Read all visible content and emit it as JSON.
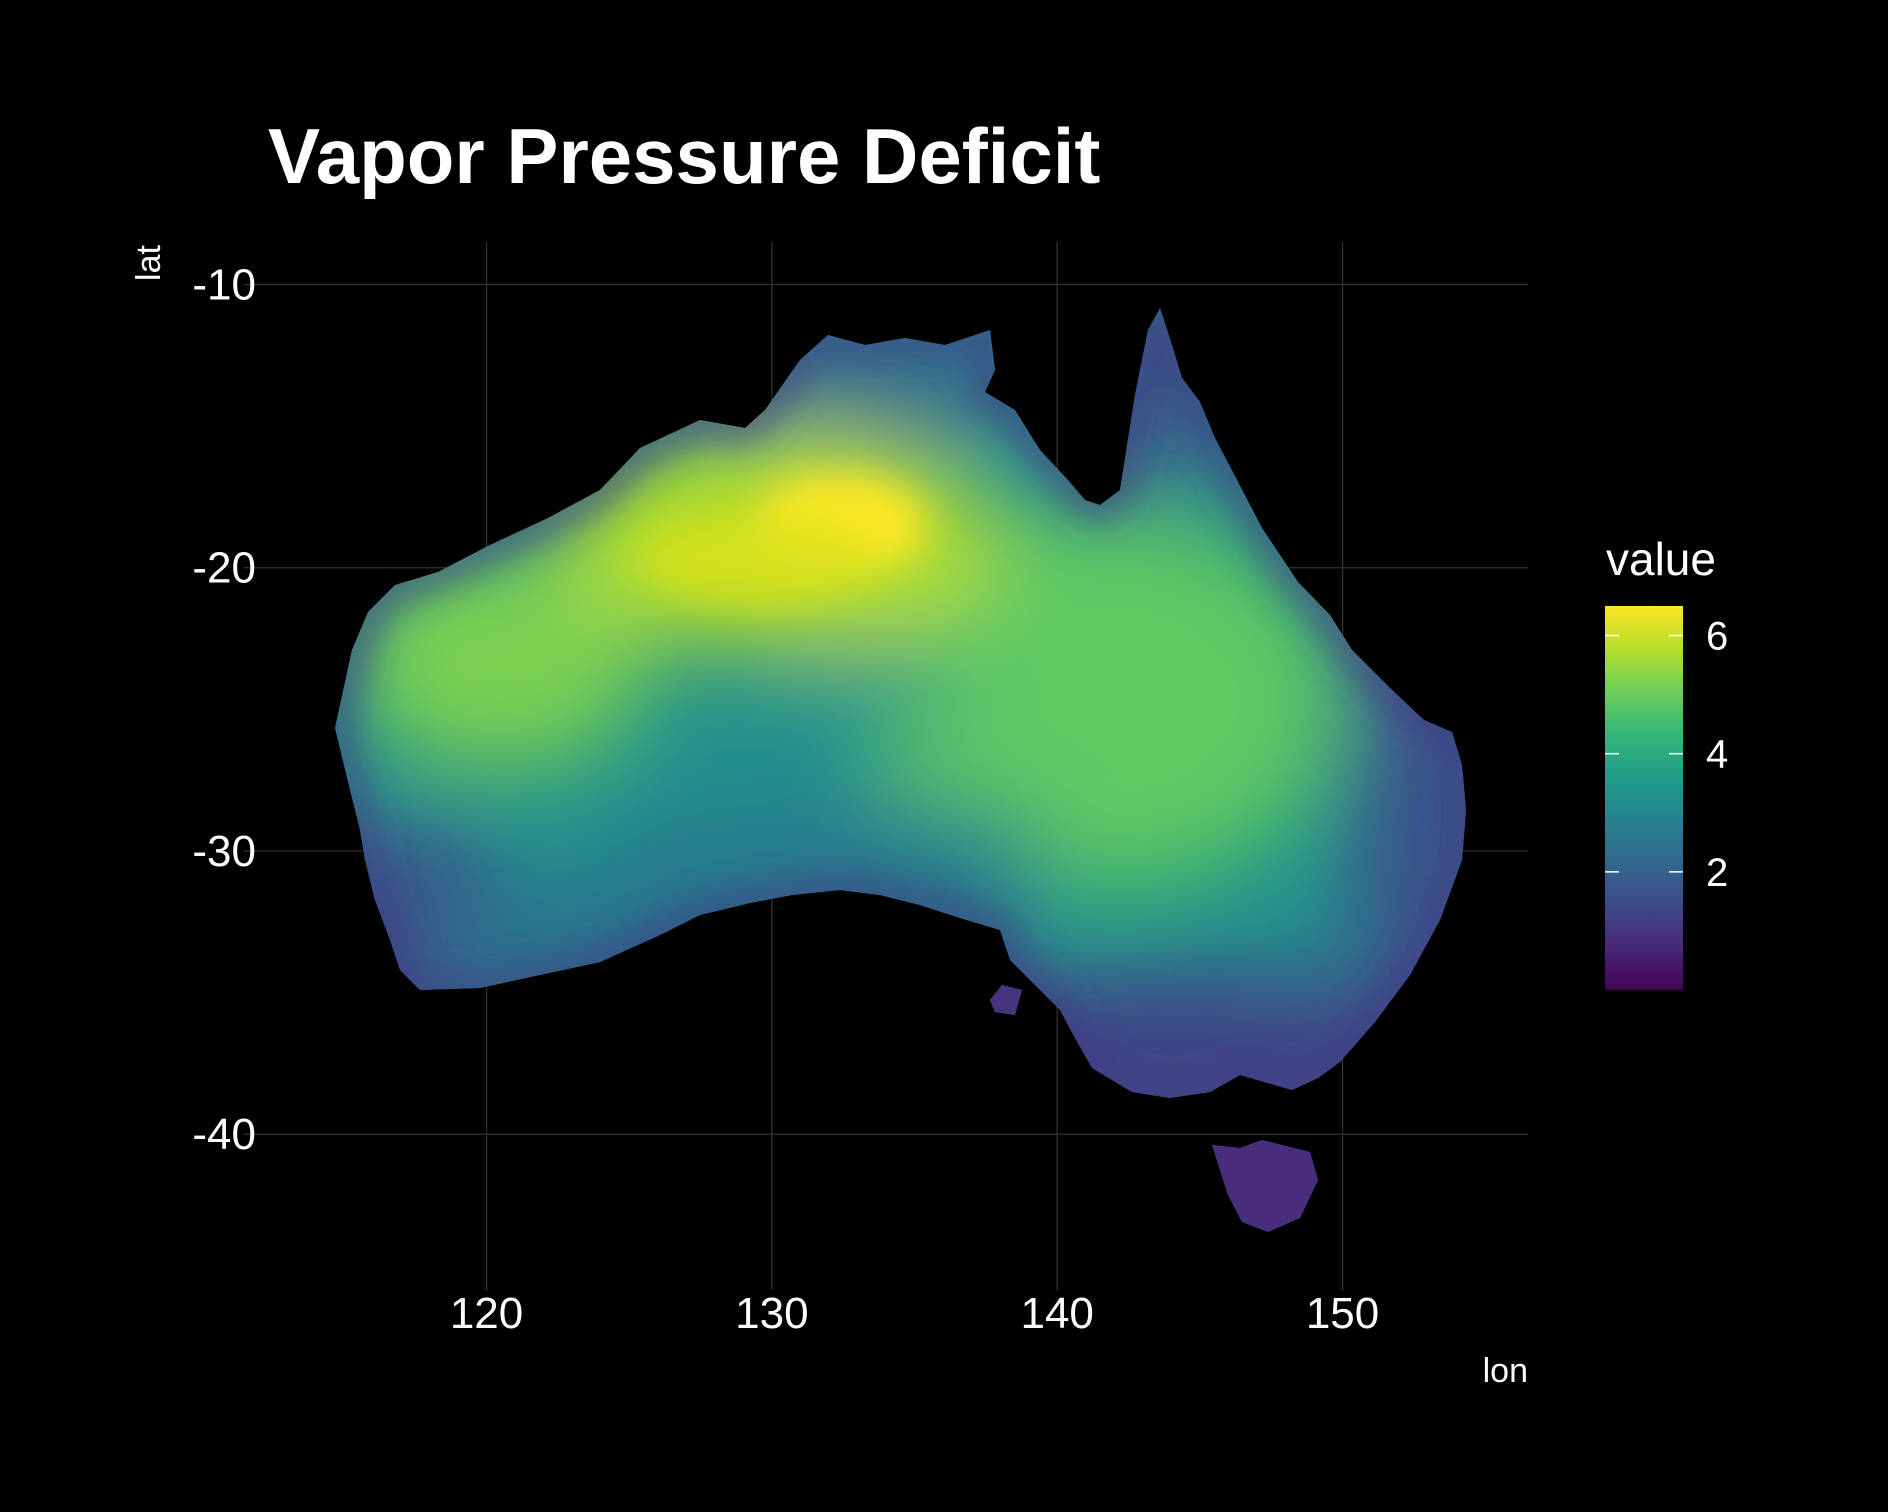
{
  "chart_data": {
    "type": "heatmap",
    "title": "Vapor Pressure Deficit",
    "xlabel": "lon",
    "ylabel": "lat",
    "xlim": [
      111.5,
      156.5
    ],
    "ylim": [
      -45.5,
      -8.5
    ],
    "x_ticks": [
      120,
      130,
      140,
      150
    ],
    "x_tick_labels": [
      "120",
      "130",
      "140",
      "150"
    ],
    "y_ticks": [
      -10,
      -20,
      -30,
      -40
    ],
    "y_tick_labels": [
      "-10",
      "-20",
      "-30",
      "-40"
    ],
    "grid": true,
    "legend": {
      "title": "value",
      "placement": "right",
      "range": [
        0,
        6.5
      ],
      "ticks": [
        2,
        4,
        6
      ],
      "tick_labels": [
        "2",
        "4",
        "6"
      ],
      "palette": "viridis",
      "colors": [
        "#440154",
        "#482878",
        "#3E4A89",
        "#31688E",
        "#26828E",
        "#1F9E89",
        "#35B779",
        "#6DCD59",
        "#B4DE2C",
        "#FDE725"
      ]
    },
    "background": "#000000",
    "grid_color": "#333333",
    "regions": [
      {
        "name": "mainland",
        "mean_value": 3.5
      },
      {
        "name": "tasmania",
        "mean_value": 0.9
      }
    ],
    "hotspots": [
      {
        "lon": 131.5,
        "lat": -18.5,
        "value": 6.2
      },
      {
        "lon": 123.0,
        "lat": -22.5,
        "value": 5.1
      },
      {
        "lon": 140.5,
        "lat": -25.5,
        "value": 4.4
      },
      {
        "lon": 133.0,
        "lat": -24.5,
        "value": 3.0
      },
      {
        "lon": 143.0,
        "lat": -31.0,
        "value": 3.5
      },
      {
        "lon": 128.0,
        "lat": -31.0,
        "value": 2.2
      }
    ]
  }
}
